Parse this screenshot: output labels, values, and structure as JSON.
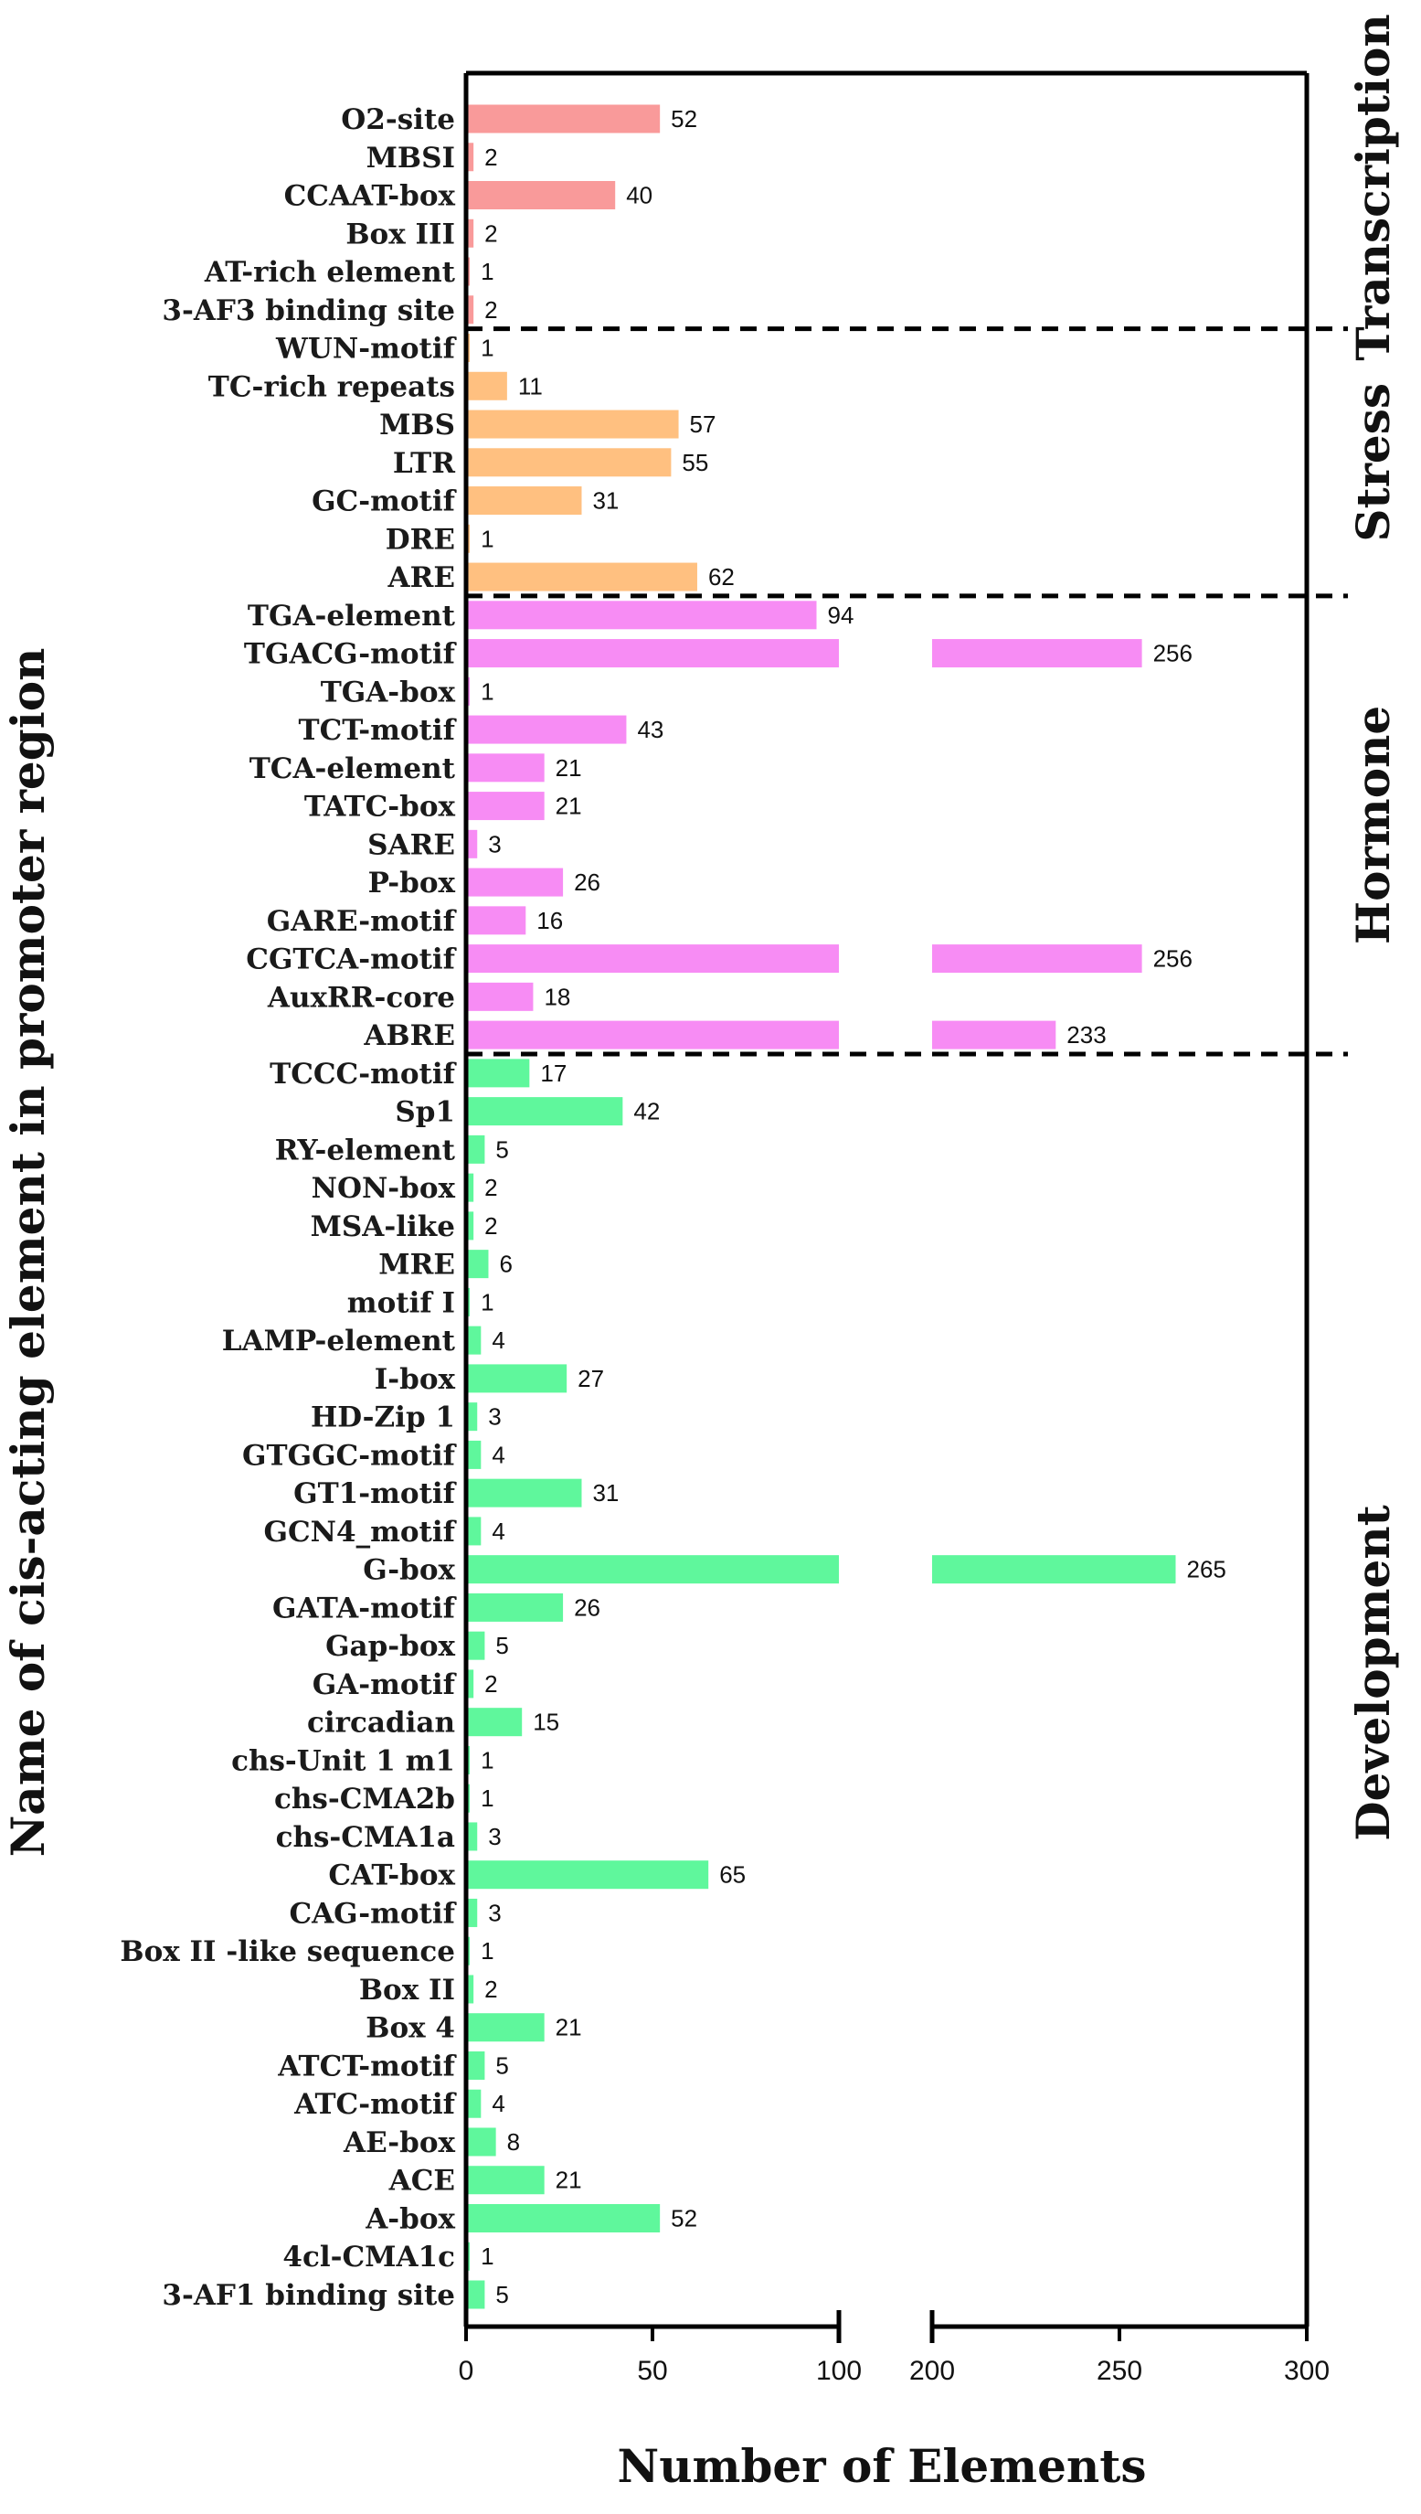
{
  "chart_data": {
    "type": "bar",
    "orientation": "horizontal",
    "xlabel": "Number of Elements",
    "ylabel": "Name of cis-acting element in promoter region",
    "x_axis_break": {
      "lower_segment": [
        0,
        100
      ],
      "upper_segment": [
        200,
        300
      ]
    },
    "x_ticks": [
      "0",
      "50",
      "100",
      "200",
      "250",
      "300"
    ],
    "groups": [
      {
        "name": "Transcription",
        "color": "#f99a9a"
      },
      {
        "name": "Stress",
        "color": "#ffc080"
      },
      {
        "name": "Hormone",
        "color": "#f78cf4"
      },
      {
        "name": "Development",
        "color": "#5ff79c"
      }
    ],
    "categories": [
      {
        "label": "O2-site",
        "value": 52,
        "group": "Transcription"
      },
      {
        "label": "MBSI",
        "value": 2,
        "group": "Transcription"
      },
      {
        "label": "CCAAT-box",
        "value": 40,
        "group": "Transcription"
      },
      {
        "label": "Box III",
        "value": 2,
        "group": "Transcription"
      },
      {
        "label": "AT-rich element",
        "value": 1,
        "group": "Transcription"
      },
      {
        "label": "3-AF3 binding site",
        "value": 2,
        "group": "Transcription"
      },
      {
        "label": "WUN-motif",
        "value": 1,
        "group": "Stress"
      },
      {
        "label": "TC-rich repeats",
        "value": 11,
        "group": "Stress"
      },
      {
        "label": "MBS",
        "value": 57,
        "group": "Stress"
      },
      {
        "label": "LTR",
        "value": 55,
        "group": "Stress"
      },
      {
        "label": "GC-motif",
        "value": 31,
        "group": "Stress"
      },
      {
        "label": "DRE",
        "value": 1,
        "group": "Stress"
      },
      {
        "label": "ARE",
        "value": 62,
        "group": "Stress"
      },
      {
        "label": "TGA-element",
        "value": 94,
        "group": "Hormone"
      },
      {
        "label": "TGACG-motif",
        "value": 256,
        "group": "Hormone"
      },
      {
        "label": "TGA-box",
        "value": 1,
        "group": "Hormone"
      },
      {
        "label": "TCT-motif",
        "value": 43,
        "group": "Hormone"
      },
      {
        "label": "TCA-element",
        "value": 21,
        "group": "Hormone"
      },
      {
        "label": "TATC-box",
        "value": 21,
        "group": "Hormone"
      },
      {
        "label": "SARE",
        "value": 3,
        "group": "Hormone"
      },
      {
        "label": "P-box",
        "value": 26,
        "group": "Hormone"
      },
      {
        "label": "GARE-motif",
        "value": 16,
        "group": "Hormone"
      },
      {
        "label": "CGTCA-motif",
        "value": 256,
        "group": "Hormone"
      },
      {
        "label": "AuxRR-core",
        "value": 18,
        "group": "Hormone"
      },
      {
        "label": "ABRE",
        "value": 233,
        "group": "Hormone"
      },
      {
        "label": "TCCC-motif",
        "value": 17,
        "group": "Development"
      },
      {
        "label": "Sp1",
        "value": 42,
        "group": "Development"
      },
      {
        "label": "RY-element",
        "value": 5,
        "group": "Development"
      },
      {
        "label": "NON-box",
        "value": 2,
        "group": "Development"
      },
      {
        "label": "MSA-like",
        "value": 2,
        "group": "Development"
      },
      {
        "label": "MRE",
        "value": 6,
        "group": "Development"
      },
      {
        "label": "motif I",
        "value": 1,
        "group": "Development"
      },
      {
        "label": "LAMP-element",
        "value": 4,
        "group": "Development"
      },
      {
        "label": "I-box",
        "value": 27,
        "group": "Development"
      },
      {
        "label": "HD-Zip 1",
        "value": 3,
        "group": "Development"
      },
      {
        "label": "GTGGC-motif",
        "value": 4,
        "group": "Development"
      },
      {
        "label": "GT1-motif",
        "value": 31,
        "group": "Development"
      },
      {
        "label": "GCN4_motif",
        "value": 4,
        "group": "Development"
      },
      {
        "label": "G-box",
        "value": 265,
        "group": "Development"
      },
      {
        "label": "GATA-motif",
        "value": 26,
        "group": "Development"
      },
      {
        "label": "Gap-box",
        "value": 5,
        "group": "Development"
      },
      {
        "label": "GA-motif",
        "value": 2,
        "group": "Development"
      },
      {
        "label": "circadian",
        "value": 15,
        "group": "Development"
      },
      {
        "label": "chs-Unit 1 m1",
        "value": 1,
        "group": "Development"
      },
      {
        "label": "chs-CMA2b",
        "value": 1,
        "group": "Development"
      },
      {
        "label": "chs-CMA1a",
        "value": 3,
        "group": "Development"
      },
      {
        "label": "CAT-box",
        "value": 65,
        "group": "Development"
      },
      {
        "label": "CAG-motif",
        "value": 3,
        "group": "Development"
      },
      {
        "label": "Box II -like sequence",
        "value": 1,
        "group": "Development"
      },
      {
        "label": "Box II",
        "value": 2,
        "group": "Development"
      },
      {
        "label": "Box 4",
        "value": 21,
        "group": "Development"
      },
      {
        "label": "ATCT-motif",
        "value": 5,
        "group": "Development"
      },
      {
        "label": "ATC-motif",
        "value": 4,
        "group": "Development"
      },
      {
        "label": "AE-box",
        "value": 8,
        "group": "Development"
      },
      {
        "label": "ACE",
        "value": 21,
        "group": "Development"
      },
      {
        "label": "A-box",
        "value": 52,
        "group": "Development"
      },
      {
        "label": "4cl-CMA1c",
        "value": 1,
        "group": "Development"
      },
      {
        "label": "3-AF1 binding site",
        "value": 5,
        "group": "Development"
      }
    ]
  }
}
